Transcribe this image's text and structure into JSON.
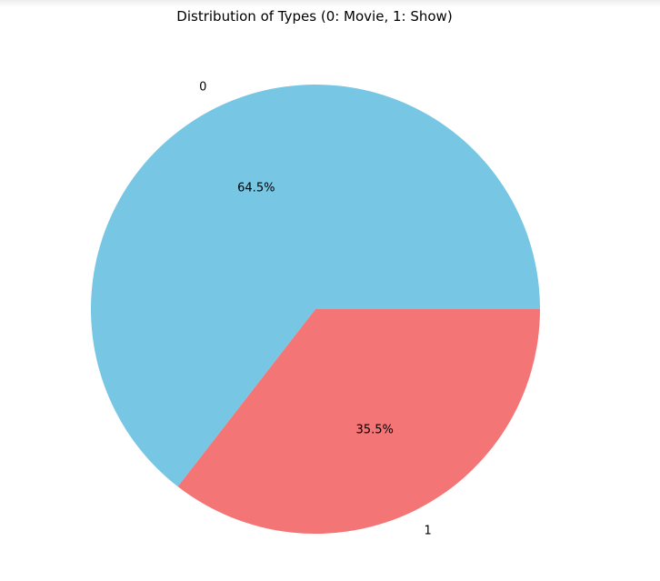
{
  "chart_data": {
    "type": "pie",
    "title": "Distribution of Types (0: Movie, 1: Show)",
    "labels": [
      "0",
      "1"
    ],
    "values": [
      64.5,
      35.5
    ],
    "percent_labels": [
      "64.5%",
      "35.5%"
    ],
    "colors": [
      "#76c6e4",
      "#f47575"
    ],
    "start_angle": 0,
    "direction": "counterclockwise",
    "legend": "none"
  }
}
